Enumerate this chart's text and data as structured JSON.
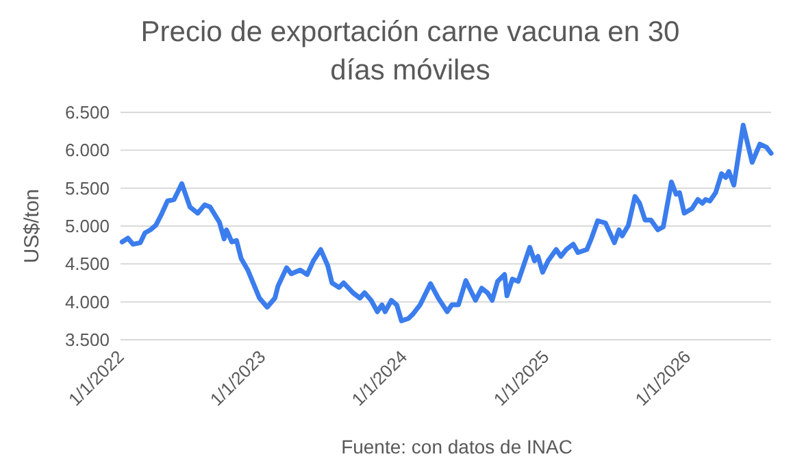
{
  "chart_data": {
    "type": "line",
    "title": "Precio de exportación carne vacuna en 30 días móviles",
    "ylabel": "US$/ton",
    "annotations": [
      "Fuente: con datos de INAC"
    ],
    "x": [
      "2022-01-05",
      "2022-01-20",
      "2022-02-02",
      "2022-02-21",
      "2022-03-05",
      "2022-03-19",
      "2022-04-02",
      "2022-04-17",
      "2022-05-02",
      "2022-05-19",
      "2022-06-08",
      "2022-06-29",
      "2022-07-19",
      "2022-08-06",
      "2022-08-20",
      "2022-09-13",
      "2022-09-25",
      "2022-10-01",
      "2022-10-15",
      "2022-10-27",
      "2022-11-08",
      "2022-11-25",
      "2022-12-25",
      "2023-01-14",
      "2023-02-03",
      "2023-02-11",
      "2023-03-05",
      "2023-03-17",
      "2023-04-09",
      "2023-04-27",
      "2023-05-13",
      "2023-06-01",
      "2023-06-19",
      "2023-06-30",
      "2023-07-18",
      "2023-07-30",
      "2023-08-23",
      "2023-09-10",
      "2023-09-22",
      "2023-10-09",
      "2023-10-25",
      "2023-11-06",
      "2023-11-14",
      "2023-11-30",
      "2023-12-14",
      "2023-12-26",
      "2024-01-13",
      "2024-01-25",
      "2024-02-12",
      "2024-03-10",
      "2024-03-30",
      "2024-04-22",
      "2024-05-04",
      "2024-05-21",
      "2024-06-09",
      "2024-07-04",
      "2024-07-20",
      "2024-08-04",
      "2024-08-16",
      "2024-08-30",
      "2024-09-17",
      "2024-09-23",
      "2024-10-07",
      "2024-10-22",
      "2024-11-03",
      "2024-11-21",
      "2024-12-03",
      "2024-12-12",
      "2024-12-24",
      "2025-01-07",
      "2025-01-28",
      "2025-02-09",
      "2025-02-23",
      "2025-03-13",
      "2025-03-25",
      "2025-04-17",
      "2025-04-29",
      "2025-05-15",
      "2025-06-04",
      "2025-06-27",
      "2025-07-09",
      "2025-07-17",
      "2025-08-02",
      "2025-08-19",
      "2025-08-31",
      "2025-09-14",
      "2025-09-29",
      "2025-10-17",
      "2025-10-31",
      "2025-11-21",
      "2025-12-03",
      "2025-12-12",
      "2025-12-24",
      "2026-01-13",
      "2026-01-28",
      "2026-02-09",
      "2026-02-17",
      "2026-02-28",
      "2026-03-15",
      "2026-03-30",
      "2026-04-10",
      "2026-04-18",
      "2026-05-01",
      "2026-05-25",
      "2026-06-17",
      "2026-07-07",
      "2026-07-24",
      "2026-08-05"
    ],
    "series": [
      {
        "color": "#3b7ded",
        "values": [
          4790,
          4840,
          4760,
          4780,
          4910,
          4950,
          5010,
          5160,
          5330,
          5350,
          5560,
          5250,
          5170,
          5280,
          5250,
          5050,
          4830,
          4950,
          4790,
          4810,
          4570,
          4420,
          4050,
          3930,
          4050,
          4210,
          4450,
          4370,
          4420,
          4360,
          4540,
          4690,
          4480,
          4250,
          4190,
          4250,
          4120,
          4050,
          4120,
          4020,
          3870,
          3960,
          3870,
          4020,
          3960,
          3750,
          3780,
          3840,
          3960,
          4240,
          4050,
          3870,
          3960,
          3960,
          4280,
          4020,
          4180,
          4120,
          4020,
          4270,
          4360,
          4080,
          4300,
          4270,
          4450,
          4720,
          4540,
          4600,
          4390,
          4540,
          4690,
          4600,
          4690,
          4760,
          4650,
          4690,
          4840,
          5070,
          5040,
          4780,
          4950,
          4870,
          5010,
          5390,
          5300,
          5080,
          5080,
          4950,
          4990,
          5580,
          5420,
          5440,
          5170,
          5230,
          5350,
          5300,
          5350,
          5330,
          5440,
          5690,
          5640,
          5720,
          5540,
          6330,
          5840,
          6080,
          6040,
          5960
        ]
      }
    ],
    "xlim": [
      "2022-01-01",
      "2026-08-05"
    ],
    "xticks": [
      {
        "value": "2022-01-01",
        "label": "1/1/2022"
      },
      {
        "value": "2023-01-01",
        "label": "1/1/2023"
      },
      {
        "value": "2024-01-01",
        "label": "1/1/2024"
      },
      {
        "value": "2025-01-01",
        "label": "1/1/2025"
      },
      {
        "value": "2026-01-01",
        "label": "1/1/2026"
      }
    ],
    "ylim": [
      3500,
      6500
    ],
    "yticks": [
      {
        "value": 3500,
        "label": "3.500"
      },
      {
        "value": 4000,
        "label": "4.000"
      },
      {
        "value": 4500,
        "label": "4.500"
      },
      {
        "value": 5000,
        "label": "5.000"
      },
      {
        "value": 5500,
        "label": "5.500"
      },
      {
        "value": 6000,
        "label": "6.000"
      },
      {
        "value": 6500,
        "label": "6.500"
      }
    ],
    "grid": "y",
    "line_style": "solid",
    "marker": "none"
  }
}
